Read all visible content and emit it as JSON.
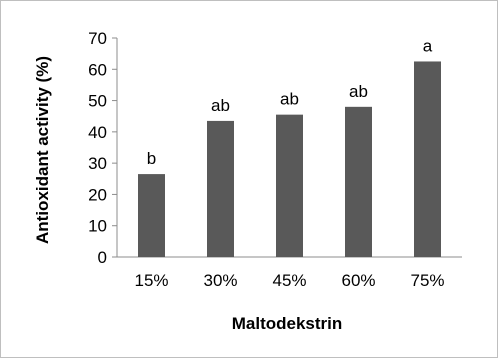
{
  "chart_data": {
    "type": "bar",
    "title": "",
    "xlabel": "Maltodekstrin",
    "ylabel": "Antioxidant activity (%)",
    "categories": [
      "15%",
      "30%",
      "45%",
      "60%",
      "75%"
    ],
    "values": [
      26.5,
      43.5,
      45.5,
      48,
      62.5
    ],
    "data_labels": [
      "b",
      "ab",
      "ab",
      "ab",
      "a"
    ],
    "ylim": [
      0,
      70
    ],
    "yticks": [
      "0",
      "10",
      "20",
      "30",
      "40",
      "50",
      "60",
      "70"
    ],
    "grid": false,
    "legend": "none",
    "colors": {
      "bar": "#595959",
      "axis": "#8c8c8c",
      "frame": "#bfbfbf"
    }
  }
}
